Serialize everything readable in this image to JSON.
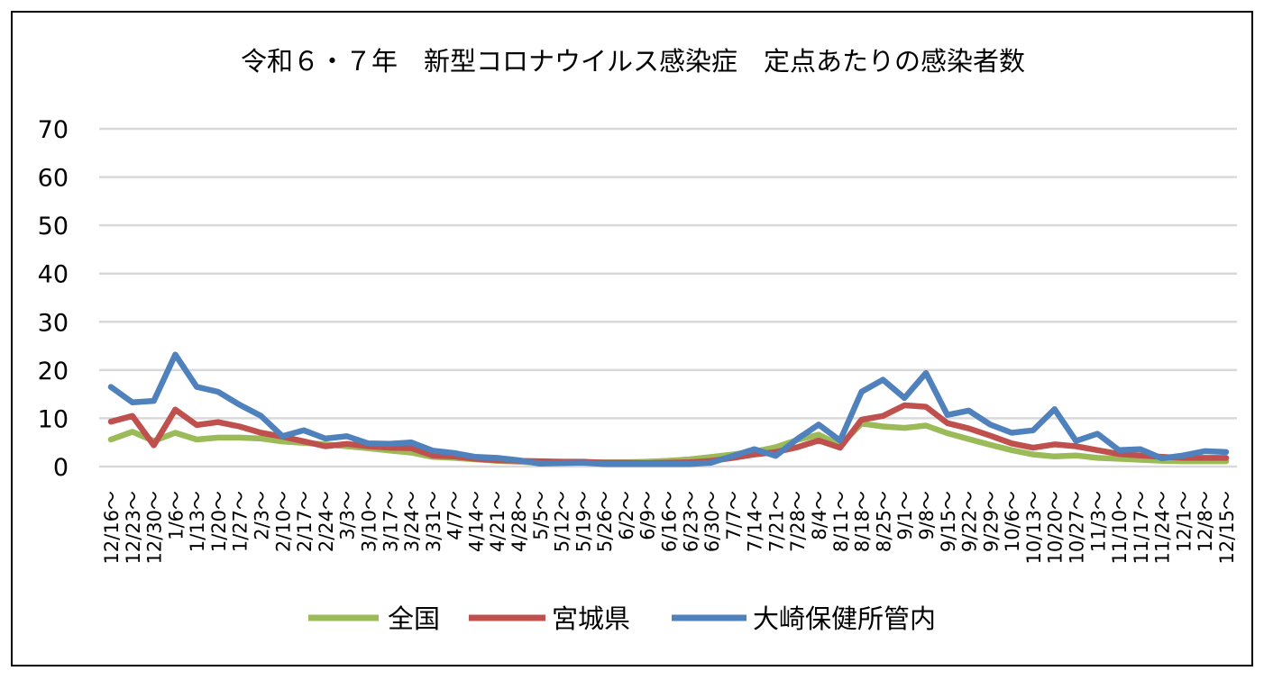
{
  "chart_data": {
    "type": "line",
    "title": "令和６・７年　新型コロナウイルス感染症　定点あたりの感染者数",
    "xlabel": "",
    "ylabel": "",
    "ylim": [
      0,
      70
    ],
    "yticks": [
      "0",
      "10",
      "20",
      "30",
      "40",
      "50",
      "60",
      "70"
    ],
    "grid": true,
    "legend": "bottom",
    "categories": [
      "12/16〜",
      "12/23〜",
      "12/30〜",
      "1/6〜",
      "1/13〜",
      "1/20〜",
      "1/27〜",
      "2/3〜",
      "2/10〜",
      "2/17〜",
      "2/24〜",
      "3/3〜",
      "3/10〜",
      "3/17〜",
      "3/24〜",
      "3/31〜",
      "4/7〜",
      "4/14〜",
      "4/21〜",
      "4/28〜",
      "5/5〜",
      "5/12〜",
      "5/19〜",
      "5/26〜",
      "6/2〜",
      "6/9〜",
      "6/16〜",
      "6/23〜",
      "6/30〜",
      "7/7〜",
      "7/14〜",
      "7/21〜",
      "7/28〜",
      "8/4〜",
      "8/11〜",
      "8/18〜",
      "8/25〜",
      "9/1〜",
      "9/8〜",
      "9/15〜",
      "9/22〜",
      "9/29〜",
      "10/6〜",
      "10/13〜",
      "10/20〜",
      "10/27〜",
      "11/3〜",
      "11/10〜",
      "11/17〜",
      "11/24〜",
      "12/1〜",
      "12/8〜",
      "12/15〜"
    ],
    "series": [
      {
        "name": "全国",
        "color": "#9BBB59",
        "values": [
          5.6,
          7.2,
          5.3,
          7.0,
          5.6,
          6.0,
          6.0,
          5.8,
          5.2,
          4.9,
          4.6,
          4.2,
          3.8,
          3.3,
          2.9,
          2.0,
          1.8,
          1.5,
          1.2,
          1.0,
          0.8,
          0.9,
          0.9,
          0.9,
          0.9,
          1.0,
          1.2,
          1.5,
          2.0,
          2.5,
          3.1,
          4.0,
          5.5,
          6.6,
          4.4,
          8.9,
          8.3,
          8.0,
          8.5,
          6.9,
          5.7,
          4.5,
          3.4,
          2.5,
          2.1,
          2.3,
          1.8,
          1.6,
          1.4,
          1.2,
          1.1,
          1.1,
          1.1
        ]
      },
      {
        "name": "宮城県",
        "color": "#C0504D",
        "values": [
          9.3,
          10.5,
          4.4,
          11.8,
          8.6,
          9.2,
          8.3,
          7.0,
          6.2,
          5.2,
          4.2,
          4.7,
          4.2,
          3.9,
          3.8,
          2.3,
          2.1,
          1.6,
          1.3,
          1.2,
          1.1,
          1.0,
          1.0,
          0.8,
          0.8,
          0.7,
          0.8,
          0.9,
          1.2,
          1.8,
          2.5,
          3.0,
          4.0,
          5.4,
          3.9,
          9.7,
          10.5,
          12.7,
          12.4,
          9.0,
          7.9,
          6.4,
          4.8,
          3.9,
          4.6,
          4.2,
          3.4,
          2.6,
          2.3,
          2.0,
          1.8,
          1.8,
          1.8
        ]
      },
      {
        "name": "大崎保健所管内",
        "color": "#4F81BD",
        "values": [
          16.5,
          13.3,
          13.6,
          23.2,
          16.5,
          15.5,
          12.8,
          10.5,
          6.3,
          7.5,
          5.8,
          6.3,
          4.8,
          4.7,
          5.0,
          3.3,
          2.8,
          2.0,
          1.8,
          1.3,
          0.6,
          0.7,
          0.8,
          0.5,
          0.5,
          0.5,
          0.5,
          0.5,
          0.8,
          2.2,
          3.6,
          2.2,
          5.7,
          8.7,
          5.4,
          15.5,
          18.0,
          14.2,
          19.4,
          10.7,
          11.6,
          8.7,
          7.0,
          7.5,
          11.9,
          5.3,
          6.8,
          3.4,
          3.6,
          1.7,
          2.3,
          3.2,
          3.0
        ]
      }
    ]
  }
}
